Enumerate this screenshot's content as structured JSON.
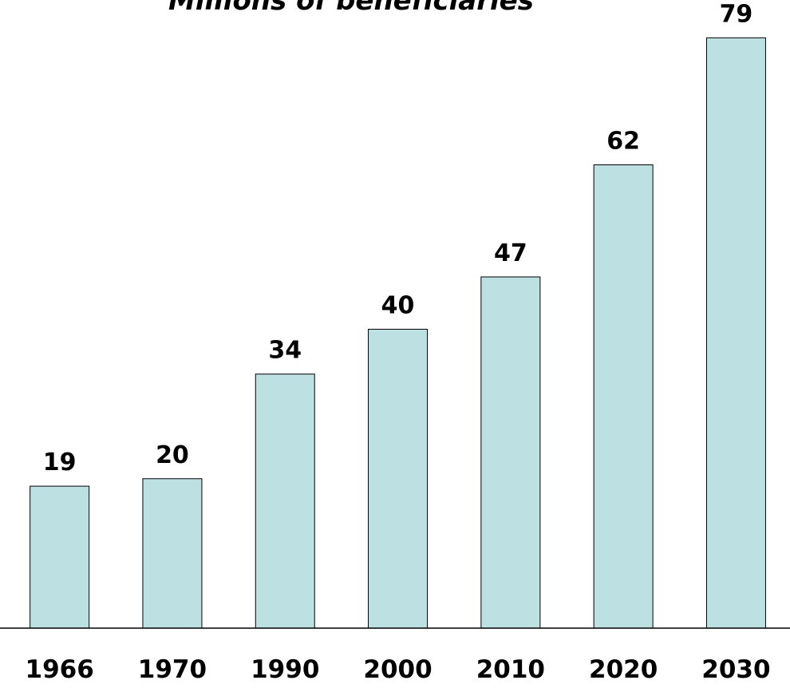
{
  "chart_data": {
    "type": "bar",
    "title": "Millions of beneficiaries",
    "categories": [
      "1966",
      "1970",
      "1990",
      "2000",
      "2010",
      "2020",
      "2030"
    ],
    "values": [
      19,
      20,
      34,
      40,
      47,
      62,
      79
    ],
    "color": "#bde0e3",
    "ylim": [
      0,
      80
    ]
  }
}
